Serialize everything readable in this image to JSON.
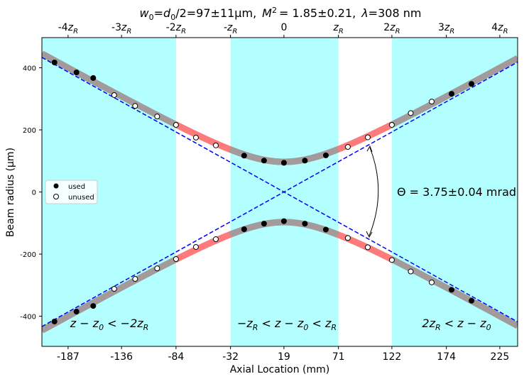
{
  "chart_data": {
    "type": "scatter",
    "title": {
      "prefix_var": "w",
      "prefix_sub": "0",
      "mid": "=",
      "d_var": "d",
      "d_sub": "0",
      "value": "/2=97±11µm,",
      "m_var": "M",
      "m_sup": "2",
      "m_value": "= 1.85±0.21,",
      "lambda_var": "λ",
      "lambda_value": "=308 nm"
    },
    "xlabel": "Axial Location (mm)",
    "ylabel": "Beam radius (µm)",
    "xlim": [
      -212,
      242
    ],
    "ylim": [
      -497,
      497
    ],
    "waist_z0": 19,
    "rayleigh_zR": 51.5,
    "waist_w0": 97,
    "divergence_slope": 1.875,
    "x_ticks": [
      {
        "value": -187,
        "label": "-187"
      },
      {
        "value": -136,
        "label": "-136"
      },
      {
        "value": -84,
        "label": "-84"
      },
      {
        "value": -32,
        "label": "-32"
      },
      {
        "value": 19,
        "label": "19"
      },
      {
        "value": 71,
        "label": "71"
      },
      {
        "value": 122,
        "label": "122"
      },
      {
        "value": 174,
        "label": "174"
      },
      {
        "value": 225,
        "label": "225"
      }
    ],
    "y_ticks": [
      {
        "value": 400,
        "label": "400"
      },
      {
        "value": 200,
        "label": "200"
      },
      {
        "value": 0,
        "label": "0"
      },
      {
        "value": -200,
        "label": "-200"
      },
      {
        "value": -400,
        "label": "-400"
      }
    ],
    "top_ticks": [
      {
        "value": -187,
        "label": "-4z",
        "sub": "R"
      },
      {
        "value": -136,
        "label": "-3z",
        "sub": "R"
      },
      {
        "value": -84,
        "label": "-2z",
        "sub": "R"
      },
      {
        "value": -32,
        "label": "-z",
        "sub": "R"
      },
      {
        "value": 19,
        "label": "0",
        "sub": ""
      },
      {
        "value": 71,
        "label": "z",
        "sub": "R"
      },
      {
        "value": 122,
        "label": "2z",
        "sub": "R"
      },
      {
        "value": 174,
        "label": "3z",
        "sub": "R"
      },
      {
        "value": 225,
        "label": "4z",
        "sub": "R"
      }
    ],
    "shaded_regions": [
      {
        "x0": -212,
        "x1": -84
      },
      {
        "x0": -32,
        "x1": 71
      },
      {
        "x0": 122,
        "x1": 242
      }
    ],
    "region_labels": [
      {
        "text": "z − z₀ < −2z_R",
        "x": -148,
        "y": -420
      },
      {
        "text": "−z_R < z − z₀ < z_R",
        "x": 19,
        "y": -420
      },
      {
        "text": "2z_R < z − z₀",
        "x": 184,
        "y": -420
      }
    ],
    "annotation": {
      "text": "Θ  = 3.75±0.04 mrad"
    },
    "legend": {
      "location": "center-left",
      "entries": [
        "used",
        "unused"
      ]
    },
    "series": [
      {
        "name": "used",
        "marker": "filled",
        "points": [
          [
            -200,
            417
          ],
          [
            -179,
            385
          ],
          [
            -163,
            367
          ],
          [
            -19,
            117
          ],
          [
            0,
            101
          ],
          [
            19,
            94
          ],
          [
            39,
            101
          ],
          [
            59,
            118
          ],
          [
            179,
            316
          ],
          [
            198,
            348
          ],
          [
            -200,
            -417
          ],
          [
            -179,
            -385
          ],
          [
            -163,
            -367
          ],
          [
            -19,
            -120
          ],
          [
            0,
            -102
          ],
          [
            19,
            -94
          ],
          [
            39,
            -102
          ],
          [
            59,
            -121
          ],
          [
            179,
            -315
          ],
          [
            198,
            -350
          ]
        ]
      },
      {
        "name": "unused",
        "marker": "open",
        "points": [
          [
            -143,
            312
          ],
          [
            -123,
            277
          ],
          [
            -102,
            243
          ],
          [
            -84,
            216
          ],
          [
            -65,
            175
          ],
          [
            -46,
            150
          ],
          [
            80,
            145
          ],
          [
            99,
            176
          ],
          [
            122,
            216
          ],
          [
            140,
            254
          ],
          [
            160,
            291
          ],
          [
            -143,
            -312
          ],
          [
            -123,
            -280
          ],
          [
            -102,
            -246
          ],
          [
            -84,
            -216
          ],
          [
            -65,
            -177
          ],
          [
            -46,
            -152
          ],
          [
            80,
            -148
          ],
          [
            99,
            -178
          ],
          [
            122,
            -219
          ],
          [
            140,
            -256
          ],
          [
            160,
            -291
          ]
        ]
      }
    ],
    "colors": {
      "shade": "#b3ffff",
      "fit_band": "#a39b9b",
      "fit_band_mid": "#ff7a7a",
      "asymptote": "#0000ff",
      "marker": "#000000"
    }
  }
}
